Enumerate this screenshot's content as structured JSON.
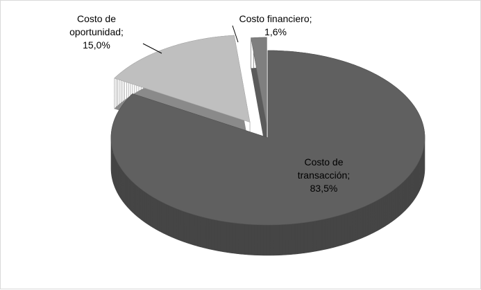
{
  "chart_data": {
    "type": "pie3d",
    "categories": [
      "Costo de transacción",
      "Costo de oportunidad",
      "Costo financiero"
    ],
    "values": [
      83.5,
      15.0,
      1.6
    ],
    "value_labels": [
      "83,5%",
      "15,0%",
      "1,6%"
    ],
    "label_separator": "; ",
    "colors": [
      "#606060",
      "#bfbfbf",
      "#7f7f7f"
    ]
  }
}
